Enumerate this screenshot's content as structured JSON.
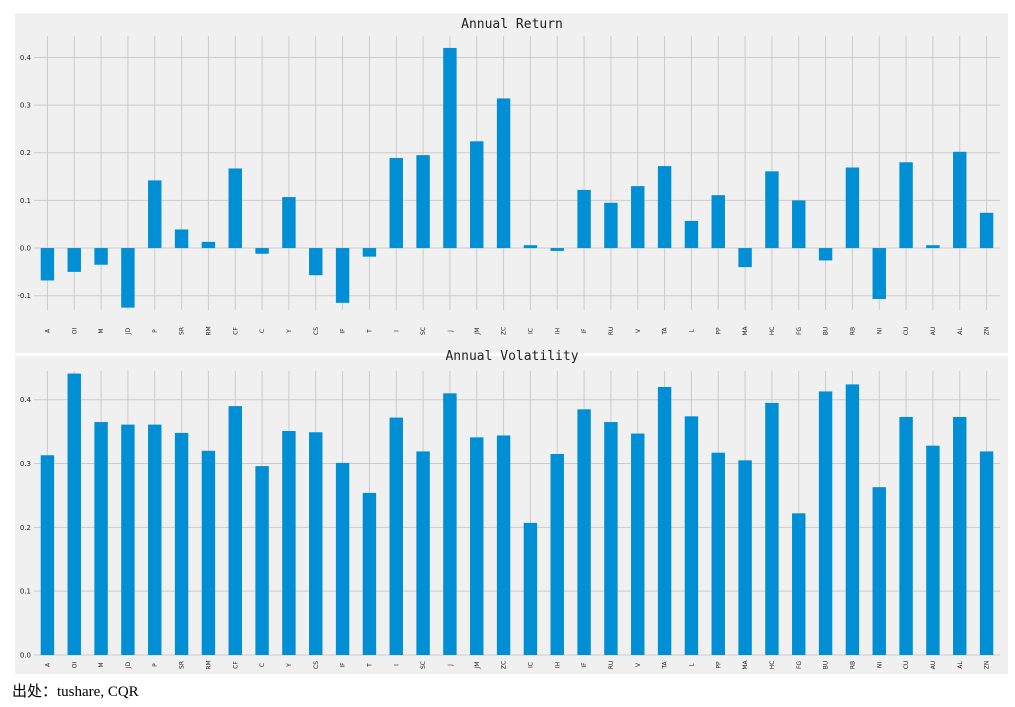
{
  "chart_data": [
    {
      "type": "bar",
      "title": "Annual Return",
      "categories": [
        "A",
        "OI",
        "M",
        "JD",
        "P",
        "SR",
        "RM",
        "CF",
        "C",
        "Y",
        "CS",
        "IF",
        "T",
        "I",
        "SC",
        "J",
        "JM",
        "ZC",
        "IC",
        "IH",
        "IF",
        "RU",
        "V",
        "TA",
        "L",
        "PP",
        "MA",
        "HC",
        "FG",
        "BU",
        "RB",
        "NI",
        "CU",
        "AU",
        "AL",
        "ZN"
      ],
      "values": [
        -0.068,
        -0.05,
        -0.035,
        -0.125,
        0.142,
        0.039,
        0.013,
        0.167,
        -0.012,
        0.107,
        -0.057,
        -0.115,
        -0.018,
        0.189,
        0.195,
        0.42,
        0.224,
        0.314,
        0.006,
        -0.006,
        0.122,
        0.095,
        0.13,
        0.172,
        0.057,
        0.111,
        -0.04,
        0.161,
        0.1,
        -0.026,
        0.169,
        -0.107,
        0.18,
        0.006,
        0.202,
        0.074
      ],
      "yticks": [
        "-0.1",
        "0.0",
        "0.1",
        "0.2",
        "0.3",
        "0.4"
      ],
      "ylim": [
        -0.13,
        0.445
      ],
      "grid": true,
      "color": "#008fd5"
    },
    {
      "type": "bar",
      "title": "Annual Volatility",
      "categories": [
        "A",
        "OI",
        "M",
        "JD",
        "P",
        "SR",
        "RM",
        "CF",
        "C",
        "Y",
        "CS",
        "IF",
        "T",
        "I",
        "SC",
        "J",
        "JM",
        "ZC",
        "IC",
        "IH",
        "IF",
        "RU",
        "V",
        "TA",
        "L",
        "PP",
        "MA",
        "HC",
        "FG",
        "BU",
        "RB",
        "NI",
        "CU",
        "AU",
        "AL",
        "ZN"
      ],
      "values": [
        0.313,
        0.441,
        0.365,
        0.361,
        0.361,
        0.348,
        0.32,
        0.39,
        0.296,
        0.351,
        0.349,
        0.301,
        0.254,
        0.372,
        0.319,
        0.41,
        0.341,
        0.344,
        0.207,
        0.315,
        0.385,
        0.365,
        0.347,
        0.42,
        0.374,
        0.317,
        0.305,
        0.395,
        0.222,
        0.413,
        0.424,
        0.263,
        0.373,
        0.328,
        0.373,
        0.319
      ],
      "yticks": [
        "0.0",
        "0.1",
        "0.2",
        "0.3",
        "0.4"
      ],
      "ylim": [
        0,
        0.445
      ],
      "grid": true,
      "color": "#008fd5"
    }
  ],
  "source_text": "出处：tushare, CQR",
  "colors": {
    "panel_bg": "#f0f0f0",
    "grid": "#cbcbcb",
    "bar": "#008fd5",
    "text": "#222222"
  }
}
